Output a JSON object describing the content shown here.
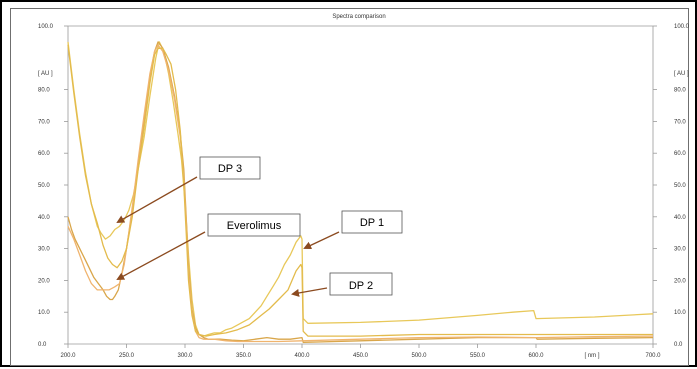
{
  "chart_data": {
    "type": "line",
    "title": "Spectra comparison",
    "xlabel": "[ nm ]",
    "ylabel_left": "[ AU ]",
    "ylabel_right": "[ AU ]",
    "xlim": [
      200,
      700
    ],
    "ylim": [
      0,
      100
    ],
    "x_ticks": [
      {
        "value": 200,
        "label": "200.0"
      },
      {
        "value": 250,
        "label": "250.0"
      },
      {
        "value": 300,
        "label": "300.0"
      },
      {
        "value": 350,
        "label": "350.0"
      },
      {
        "value": 400,
        "label": "400.0"
      },
      {
        "value": 450,
        "label": "450.0"
      },
      {
        "value": 500,
        "label": "500.0"
      },
      {
        "value": 550,
        "label": "550.0"
      },
      {
        "value": 600,
        "label": "600.0"
      },
      {
        "value": 700,
        "label": "700.0"
      }
    ],
    "y_ticks": [
      {
        "value": 0,
        "label": "0.0"
      },
      {
        "value": 10,
        "label": "10.0"
      },
      {
        "value": 20,
        "label": "20.0"
      },
      {
        "value": 30,
        "label": "30.0"
      },
      {
        "value": 40,
        "label": "40.0"
      },
      {
        "value": 50,
        "label": "50.0"
      },
      {
        "value": 60,
        "label": "60.0"
      },
      {
        "value": 70,
        "label": "70.0"
      },
      {
        "value": 80,
        "label": "80.0"
      },
      {
        "value": 100,
        "label": "100.0"
      }
    ],
    "grid": false,
    "series": [
      {
        "color": "#e8c85a",
        "points": [
          [
            200,
            95
          ],
          [
            205,
            80
          ],
          [
            210,
            66
          ],
          [
            215,
            54
          ],
          [
            220,
            44
          ],
          [
            225,
            37
          ],
          [
            228,
            35
          ],
          [
            232,
            33
          ],
          [
            236,
            34
          ],
          [
            240,
            36
          ],
          [
            244,
            37
          ],
          [
            248,
            39
          ],
          [
            252,
            42
          ],
          [
            256,
            47
          ],
          [
            260,
            55
          ],
          [
            265,
            65
          ],
          [
            270,
            78
          ],
          [
            275,
            90
          ],
          [
            278,
            95
          ],
          [
            282,
            92
          ],
          [
            286,
            85
          ],
          [
            290,
            76
          ],
          [
            294,
            66
          ],
          [
            297,
            58
          ],
          [
            300,
            45
          ],
          [
            303,
            28
          ],
          [
            306,
            14
          ],
          [
            309,
            6
          ],
          [
            312,
            3
          ],
          [
            316,
            2.5
          ],
          [
            320,
            3
          ],
          [
            325,
            3.5
          ],
          [
            330,
            3.5
          ],
          [
            335,
            4.5
          ],
          [
            340,
            5
          ],
          [
            345,
            6
          ],
          [
            350,
            7
          ],
          [
            355,
            8
          ],
          [
            360,
            10
          ],
          [
            365,
            12
          ],
          [
            370,
            15
          ],
          [
            375,
            18
          ],
          [
            380,
            21
          ],
          [
            385,
            25
          ],
          [
            390,
            28
          ],
          [
            395,
            32
          ],
          [
            399,
            34
          ],
          [
            400,
            33
          ],
          [
            401,
            8
          ],
          [
            405,
            6.5
          ],
          [
            450,
            6.8
          ],
          [
            500,
            7.5
          ],
          [
            550,
            9
          ],
          [
            580,
            10
          ],
          [
            598,
            10.5
          ],
          [
            600,
            8
          ],
          [
            650,
            8.5
          ],
          [
            700,
            9.5
          ]
        ]
      },
      {
        "color": "#d9a64a",
        "points": [
          [
            200,
            40
          ],
          [
            203,
            36
          ],
          [
            206,
            33
          ],
          [
            210,
            30
          ],
          [
            214,
            27
          ],
          [
            218,
            24
          ],
          [
            222,
            21
          ],
          [
            226,
            19
          ],
          [
            230,
            17
          ],
          [
            233,
            15
          ],
          [
            236,
            14
          ],
          [
            238,
            14
          ],
          [
            240,
            15
          ],
          [
            243,
            17
          ],
          [
            246,
            22
          ],
          [
            250,
            30
          ],
          [
            255,
            42
          ],
          [
            260,
            56
          ],
          [
            265,
            70
          ],
          [
            270,
            84
          ],
          [
            274,
            92
          ],
          [
            277,
            95
          ],
          [
            281,
            93
          ],
          [
            286,
            87
          ],
          [
            291,
            78
          ],
          [
            296,
            66
          ],
          [
            299,
            55
          ],
          [
            301,
            40
          ],
          [
            303,
            24
          ],
          [
            306,
            11
          ],
          [
            309,
            5
          ],
          [
            312,
            3
          ],
          [
            316,
            2
          ],
          [
            320,
            1.5
          ],
          [
            330,
            1.5
          ],
          [
            340,
            1.2
          ],
          [
            350,
            1
          ],
          [
            360,
            1.5
          ],
          [
            370,
            2
          ],
          [
            380,
            1.5
          ],
          [
            390,
            1.5
          ],
          [
            400,
            2
          ],
          [
            401,
            0.5
          ],
          [
            450,
            1
          ],
          [
            500,
            1.5
          ],
          [
            550,
            2
          ],
          [
            600,
            2
          ],
          [
            601,
            1.5
          ],
          [
            650,
            1.8
          ],
          [
            700,
            2
          ]
        ]
      },
      {
        "color": "#f0b46e",
        "points": [
          [
            200,
            37
          ],
          [
            205,
            33
          ],
          [
            210,
            28
          ],
          [
            215,
            23
          ],
          [
            220,
            19
          ],
          [
            225,
            17
          ],
          [
            230,
            17
          ],
          [
            235,
            17
          ],
          [
            240,
            18
          ],
          [
            244,
            19
          ],
          [
            248,
            25
          ],
          [
            252,
            35
          ],
          [
            256,
            46
          ],
          [
            260,
            58
          ],
          [
            265,
            72
          ],
          [
            270,
            85
          ],
          [
            274,
            92
          ],
          [
            277,
            94
          ],
          [
            281,
            92
          ],
          [
            286,
            86
          ],
          [
            291,
            77
          ],
          [
            296,
            65
          ],
          [
            299,
            52
          ],
          [
            301,
            38
          ],
          [
            303,
            22
          ],
          [
            306,
            10
          ],
          [
            309,
            4
          ],
          [
            312,
            2
          ],
          [
            316,
            1.5
          ],
          [
            325,
            1.5
          ],
          [
            335,
            1
          ],
          [
            345,
            0.8
          ],
          [
            360,
            0.8
          ],
          [
            380,
            0.8
          ],
          [
            400,
            1
          ],
          [
            450,
            1.5
          ],
          [
            500,
            2
          ],
          [
            550,
            2.2
          ],
          [
            600,
            2
          ],
          [
            650,
            2.3
          ],
          [
            700,
            2.5
          ]
        ]
      },
      {
        "color": "#e3bb4c",
        "points": [
          [
            200,
            94
          ],
          [
            205,
            79
          ],
          [
            210,
            65
          ],
          [
            215,
            53
          ],
          [
            220,
            44
          ],
          [
            225,
            38
          ],
          [
            230,
            31
          ],
          [
            234,
            27
          ],
          [
            238,
            25
          ],
          [
            242,
            24
          ],
          [
            246,
            26
          ],
          [
            250,
            30
          ],
          [
            255,
            40
          ],
          [
            260,
            55
          ],
          [
            265,
            68
          ],
          [
            270,
            82
          ],
          [
            274,
            91
          ],
          [
            277,
            93
          ],
          [
            281,
            93
          ],
          [
            284,
            91
          ],
          [
            288,
            88
          ],
          [
            292,
            80
          ],
          [
            296,
            67
          ],
          [
            299,
            50
          ],
          [
            301,
            35
          ],
          [
            303,
            20
          ],
          [
            306,
            9
          ],
          [
            309,
            4
          ],
          [
            312,
            3
          ],
          [
            318,
            2.5
          ],
          [
            325,
            3
          ],
          [
            335,
            3.5
          ],
          [
            345,
            4.5
          ],
          [
            355,
            6
          ],
          [
            365,
            9
          ],
          [
            372,
            11
          ],
          [
            380,
            14
          ],
          [
            388,
            17
          ],
          [
            395,
            23
          ],
          [
            399,
            25
          ],
          [
            400,
            24
          ],
          [
            401,
            4
          ],
          [
            405,
            2.5
          ],
          [
            450,
            2.5
          ],
          [
            500,
            3
          ],
          [
            550,
            3
          ],
          [
            600,
            3
          ],
          [
            650,
            3
          ],
          [
            700,
            3
          ]
        ]
      }
    ],
    "annotations": [
      {
        "text": "DP 3",
        "target": [
          232,
          40
        ]
      },
      {
        "text": "Everolimus",
        "target": [
          232,
          21
        ]
      },
      {
        "text": "DP 1",
        "target": [
          400,
          31
        ]
      },
      {
        "text": "DP 2",
        "target": [
          399,
          16
        ]
      }
    ]
  }
}
